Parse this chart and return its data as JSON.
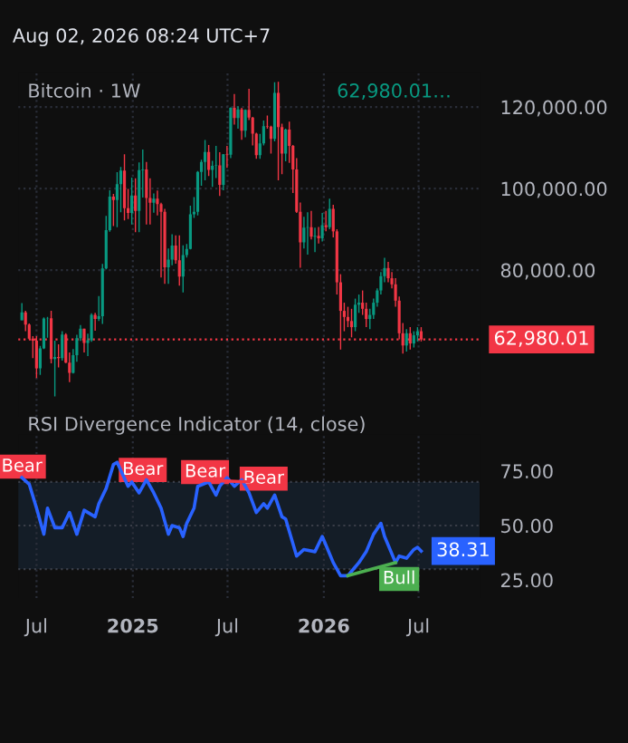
{
  "chart_data": [
    {
      "type": "candlestick",
      "title": "Bitcoin · 1W",
      "subtitle": "Aug 02, 2026 08:24 UTC+7",
      "annotations": [
        "62,980.01…"
      ],
      "x": [
        "2024-06-03",
        "2024-06-10",
        "2024-06-17",
        "2024-06-24",
        "2024-07-01",
        "2024-07-08",
        "2024-07-15",
        "2024-07-22",
        "2024-07-29",
        "2024-08-05",
        "2024-08-12",
        "2024-08-19",
        "2024-08-26",
        "2024-09-02",
        "2024-09-09",
        "2024-09-16",
        "2024-09-23",
        "2024-09-30",
        "2024-10-07",
        "2024-10-14",
        "2024-10-21",
        "2024-10-28",
        "2024-11-04",
        "2024-11-11",
        "2024-11-18",
        "2024-11-25",
        "2024-12-02",
        "2024-12-09",
        "2024-12-16",
        "2024-12-23",
        "2024-12-30",
        "2025-01-06",
        "2025-01-13",
        "2025-01-20",
        "2025-01-27",
        "2025-02-03",
        "2025-02-10",
        "2025-02-17",
        "2025-02-24",
        "2025-03-03",
        "2025-03-10",
        "2025-03-17",
        "2025-03-24",
        "2025-03-31",
        "2025-04-07",
        "2025-04-14",
        "2025-04-21",
        "2025-04-28",
        "2025-05-05",
        "2025-05-12",
        "2025-05-19",
        "2025-05-26",
        "2025-06-02",
        "2025-06-09",
        "2025-06-16",
        "2025-06-23",
        "2025-06-30",
        "2025-07-07",
        "2025-07-14",
        "2025-07-21",
        "2025-07-28",
        "2025-08-04",
        "2025-08-11",
        "2025-08-18",
        "2025-08-25",
        "2025-09-01",
        "2025-09-08",
        "2025-09-15",
        "2025-09-22",
        "2025-09-29",
        "2025-10-06",
        "2025-10-13",
        "2025-10-20",
        "2025-10-27",
        "2025-11-03",
        "2025-11-10",
        "2025-11-17",
        "2025-11-24",
        "2025-12-01",
        "2025-12-08",
        "2025-12-15",
        "2025-12-22",
        "2025-12-29",
        "2026-01-05",
        "2026-01-12",
        "2026-01-19",
        "2026-01-26",
        "2026-02-02",
        "2026-02-09",
        "2026-02-16",
        "2026-02-23",
        "2026-03-02",
        "2026-03-09",
        "2026-03-16",
        "2026-03-23",
        "2026-03-30",
        "2026-04-06",
        "2026-04-13",
        "2026-04-20",
        "2026-04-27",
        "2026-05-04",
        "2026-05-11",
        "2026-05-18",
        "2026-05-25",
        "2026-06-01",
        "2026-06-08",
        "2026-06-15",
        "2026-06-22",
        "2026-06-29",
        "2026-07-06"
      ],
      "ohlc": [
        [
          67700,
          71900,
          67700,
          69600
        ],
        [
          69600,
          70000,
          65000,
          66600
        ],
        [
          66600,
          66900,
          63000,
          63200
        ],
        [
          63200,
          63800,
          58400,
          62700
        ],
        [
          62700,
          63800,
          53500,
          55900
        ],
        [
          55900,
          61400,
          54300,
          60800
        ],
        [
          60800,
          68400,
          60600,
          68100
        ],
        [
          68100,
          68500,
          63400,
          68200
        ],
        [
          68200,
          70000,
          57100,
          58200
        ],
        [
          58200,
          62700,
          49000,
          58700
        ],
        [
          58700,
          61800,
          56100,
          58400
        ],
        [
          58400,
          65000,
          57800,
          64200
        ],
        [
          64200,
          64500,
          57200,
          57300
        ],
        [
          57300,
          59800,
          52500,
          54800
        ],
        [
          54800,
          60600,
          54600,
          59100
        ],
        [
          59100,
          64100,
          57500,
          63300
        ],
        [
          63300,
          66500,
          62600,
          65600
        ],
        [
          65600,
          65600,
          59800,
          62100
        ],
        [
          62100,
          64400,
          58900,
          62800
        ],
        [
          62800,
          69400,
          62400,
          69000
        ],
        [
          69000,
          69500,
          65100,
          68000
        ],
        [
          68000,
          73600,
          67500,
          68700
        ],
        [
          68700,
          81500,
          66800,
          80400
        ],
        [
          80400,
          93300,
          80200,
          89800
        ],
        [
          89800,
          99600,
          89400,
          98000
        ],
        [
          98000,
          98700,
          90800,
          97200
        ],
        [
          97200,
          104000,
          90500,
          101100
        ],
        [
          101100,
          105300,
          94200,
          104400
        ],
        [
          104400,
          108400,
          92200,
          95200
        ],
        [
          95200,
          99900,
          92500,
          94000
        ],
        [
          94000,
          102700,
          91200,
          98300
        ],
        [
          98300,
          102500,
          89300,
          94500
        ],
        [
          94500,
          106400,
          89300,
          104500
        ],
        [
          104500,
          109600,
          97800,
          104700
        ],
        [
          104700,
          106500,
          91200,
          97700
        ],
        [
          97700,
          102500,
          91200,
          96500
        ],
        [
          96500,
          98800,
          94100,
          97500
        ],
        [
          97500,
          99500,
          93400,
          96200
        ],
        [
          96200,
          96500,
          78200,
          94300
        ],
        [
          94300,
          95000,
          76600,
          80700
        ],
        [
          80700,
          85300,
          76600,
          82600
        ],
        [
          82600,
          88800,
          81200,
          86000
        ],
        [
          86000,
          88500,
          81600,
          82400
        ],
        [
          82400,
          88500,
          76200,
          78400
        ],
        [
          78400,
          86100,
          74500,
          83700
        ],
        [
          83700,
          86400,
          83100,
          85200
        ],
        [
          85200,
          95800,
          85100,
          93700
        ],
        [
          93700,
          97900,
          92800,
          94300
        ],
        [
          94300,
          104300,
          93400,
          104100
        ],
        [
          104100,
          107100,
          100700,
          106500
        ],
        [
          106500,
          111900,
          102000,
          109000
        ],
        [
          109000,
          110700,
          103100,
          104600
        ],
        [
          104600,
          106800,
          100400,
          105600
        ],
        [
          105600,
          110500,
          102600,
          105700
        ],
        [
          105700,
          108900,
          98200,
          100900
        ],
        [
          100900,
          108500,
          99600,
          108400
        ],
        [
          108400,
          110500,
          105100,
          108300
        ],
        [
          108300,
          119900,
          107500,
          119800
        ],
        [
          119800,
          123200,
          115700,
          117300
        ],
        [
          117300,
          120200,
          114700,
          119400
        ],
        [
          119400,
          119800,
          112000,
          114200
        ],
        [
          114200,
          119400,
          112600,
          119300
        ],
        [
          119300,
          124500,
          116800,
          117400
        ],
        [
          117400,
          117600,
          110600,
          113500
        ],
        [
          113500,
          113700,
          107300,
          108200
        ],
        [
          108200,
          113400,
          107300,
          111100
        ],
        [
          111100,
          116700,
          110600,
          115300
        ],
        [
          115300,
          117900,
          114700,
          115200
        ],
        [
          115200,
          115400,
          108600,
          112200
        ],
        [
          112200,
          126100,
          111600,
          123500
        ],
        [
          123500,
          126200,
          102000,
          115100
        ],
        [
          115100,
          115900,
          103500,
          108600
        ],
        [
          108600,
          114700,
          106700,
          114500
        ],
        [
          114500,
          116400,
          106300,
          110500
        ],
        [
          110500,
          110700,
          98900,
          104700
        ],
        [
          104700,
          107500,
          94000,
          94300
        ],
        [
          94300,
          96600,
          80600,
          86800
        ],
        [
          86800,
          93100,
          85300,
          90400
        ],
        [
          90400,
          94200,
          83800,
          90500
        ],
        [
          90500,
          94500,
          87500,
          88200
        ],
        [
          88200,
          90400,
          84400,
          88400
        ],
        [
          88400,
          90600,
          86500,
          87800
        ],
        [
          87800,
          94000,
          87000,
          91000
        ],
        [
          91000,
          94500,
          89500,
          90500
        ],
        [
          90500,
          97500,
          90000,
          95000
        ],
        [
          95000,
          96000,
          88000,
          89500
        ],
        [
          89500,
          90000,
          74000,
          77000
        ],
        [
          77000,
          79000,
          60500,
          70000
        ],
        [
          70000,
          72000,
          65000,
          68500
        ],
        [
          68500,
          71000,
          66000,
          67500
        ],
        [
          67500,
          70500,
          63500,
          66000
        ],
        [
          66000,
          73000,
          65000,
          71500
        ],
        [
          71500,
          74000,
          69500,
          72000
        ],
        [
          72000,
          75000,
          69000,
          70500
        ],
        [
          70500,
          72000,
          66000,
          68000
        ],
        [
          68000,
          70500,
          65500,
          69000
        ],
        [
          69000,
          73000,
          68000,
          72000
        ],
        [
          72000,
          75500,
          71000,
          75000
        ],
        [
          75000,
          79500,
          74000,
          78500
        ],
        [
          78500,
          83000,
          77000,
          80500
        ],
        [
          80500,
          82000,
          77000,
          78000
        ],
        [
          78000,
          79500,
          75500,
          76500
        ],
        [
          76500,
          78000,
          71000,
          72500
        ],
        [
          72500,
          73500,
          63000,
          64500
        ],
        [
          64500,
          67000,
          59500,
          61500
        ],
        [
          61500,
          65500,
          60000,
          64500
        ],
        [
          64500,
          66000,
          60500,
          62000
        ],
        [
          62000,
          65000,
          61000,
          64000
        ],
        [
          64000,
          66000,
          62500,
          65000
        ],
        [
          65000,
          66000,
          62500,
          62980.01
        ]
      ],
      "colors": [
        "#089981",
        "#f23645",
        "#f23645",
        "#f23645",
        "#f23645",
        "#089981",
        "#089981",
        "#089981",
        "#f23645",
        "#089981",
        "#f23645",
        "#089981",
        "#f23645",
        "#f23645",
        "#089981",
        "#089981",
        "#089981",
        "#f23645",
        "#089981",
        "#089981",
        "#f23645",
        "#089981",
        "#089981",
        "#089981",
        "#089981",
        "#f23645",
        "#089981",
        "#089981",
        "#f23645",
        "#f23645",
        "#089981",
        "#f23645",
        "#089981",
        "#089981",
        "#f23645",
        "#f23645",
        "#089981",
        "#f23645",
        "#f23645",
        "#f23645",
        "#089981",
        "#089981",
        "#f23645",
        "#f23645",
        "#089981",
        "#089981",
        "#089981",
        "#089981",
        "#089981",
        "#089981",
        "#089981",
        "#f23645",
        "#089981",
        "#089981",
        "#f23645",
        "#089981",
        "#f23645",
        "#089981",
        "#f23645",
        "#089981",
        "#f23645",
        "#089981",
        "#f23645",
        "#f23645",
        "#f23645",
        "#089981",
        "#089981",
        "#f23645",
        "#f23645",
        "#089981",
        "#f23645",
        "#f23645",
        "#089981",
        "#f23645",
        "#f23645",
        "#f23645",
        "#f23645",
        "#089981",
        "#089981",
        "#f23645",
        "#089981",
        "#f23645",
        "#089981",
        "#f23645",
        "#089981",
        "#f23645",
        "#f23645",
        "#f23645",
        "#f23645",
        "#f23645",
        "#f23645",
        "#089981",
        "#089981",
        "#f23645",
        "#f23645",
        "#089981",
        "#089981",
        "#089981",
        "#089981",
        "#089981",
        "#f23645",
        "#f23645",
        "#f23645",
        "#f23645",
        "#f23645",
        "#089981",
        "#f23645",
        "#089981",
        "#089981",
        "#f23645"
      ],
      "xlim": [
        "2024-05-27",
        "2026-10-26"
      ],
      "xticks": [
        {
          "value": "2024-07-01",
          "label": null
        },
        {
          "value": "2025-01-01",
          "label": null
        },
        {
          "value": "2025-07-01",
          "label": null
        },
        {
          "value": "2026-01-01",
          "label": null
        },
        {
          "value": "2026-07-01",
          "label": null
        }
      ],
      "ylim": [
        44000,
        128400
      ],
      "yticks": [
        {
          "value": 80000,
          "label": "80,000.00"
        },
        {
          "value": 100000,
          "label": "100,000.00"
        },
        {
          "value": 120000,
          "label": "120,000.00"
        }
      ],
      "ref_lines": [
        {
          "axis": "y",
          "value": 62980.01,
          "label": "62,980.01",
          "color": "#f23645",
          "line_style": "dotted"
        }
      ],
      "grid": true,
      "tick_labels": "y"
    },
    {
      "type": "line",
      "title": "RSI Divergence Indicator (14, close)",
      "series": [
        {
          "color": "#2962ff",
          "x": [
            "2024-06-03",
            "2024-06-17",
            "2024-07-01",
            "2024-07-15",
            "2024-07-22",
            "2024-08-05",
            "2024-08-19",
            "2024-09-02",
            "2024-09-16",
            "2024-09-30",
            "2024-10-21",
            "2024-10-28",
            "2024-11-11",
            "2024-11-25",
            "2024-12-02",
            "2024-12-23",
            "2024-12-30",
            "2025-01-13",
            "2025-01-27",
            "2025-02-10",
            "2025-02-24",
            "2025-03-10",
            "2025-03-17",
            "2025-03-31",
            "2025-04-07",
            "2025-04-14",
            "2025-04-28",
            "2025-05-05",
            "2025-05-26",
            "2025-06-09",
            "2025-06-16",
            "2025-06-30",
            "2025-07-14",
            "2025-07-28",
            "2025-08-11",
            "2025-08-25",
            "2025-09-08",
            "2025-09-15",
            "2025-09-29",
            "2025-10-13",
            "2025-10-20",
            "2025-11-10",
            "2025-11-24",
            "2025-12-15",
            "2025-12-29",
            "2026-01-19",
            "2026-02-02",
            "2026-02-16",
            "2026-02-23",
            "2026-03-09",
            "2026-03-23",
            "2026-04-06",
            "2026-04-20",
            "2026-04-27",
            "2026-05-18",
            "2026-05-25",
            "2026-06-08",
            "2026-06-22",
            "2026-06-29",
            "2026-07-06"
          ],
          "values": [
            72,
            69,
            58,
            46,
            58,
            49,
            49,
            56,
            46,
            57,
            54,
            60,
            67,
            78,
            79,
            68,
            70,
            65,
            71,
            65,
            58,
            46,
            50,
            49,
            45,
            51,
            58,
            68,
            70,
            64,
            68,
            72,
            68,
            71,
            65,
            56,
            60,
            58,
            64,
            54,
            53,
            36,
            39,
            38,
            45,
            33,
            27,
            27,
            29,
            33,
            38,
            46,
            51,
            45,
            33,
            36,
            35,
            39,
            40,
            38.31
          ],
          "value_labels": [
            null,
            null,
            null,
            null,
            null,
            null,
            null,
            null,
            null,
            null,
            null,
            null,
            null,
            null,
            null,
            null,
            null,
            null,
            null,
            null,
            null,
            null,
            null,
            null,
            null,
            null,
            null,
            null,
            null,
            null,
            null,
            null,
            null,
            null,
            null,
            null,
            null,
            null,
            null,
            null,
            null,
            null,
            null,
            null,
            null,
            null,
            null,
            null,
            null,
            null,
            null,
            null,
            null,
            null,
            null,
            null,
            null,
            null,
            null,
            "38.31"
          ]
        },
        {
          "color": "#f23645",
          "x": [
            "2025-05-05",
            "2025-08-11"
          ],
          "values": [
            71,
            70
          ]
        },
        {
          "color": "#4caf50",
          "x": [
            "2026-02-16",
            "2026-05-18"
          ],
          "values": [
            27,
            33
          ]
        }
      ],
      "annotations": [
        {
          "text": "Bear",
          "x": "2024-06-03",
          "y": 77
        },
        {
          "text": "Bear",
          "x": "2025-01-20",
          "y": 75.5
        },
        {
          "text": "Bear",
          "x": "2025-05-19",
          "y": 74.5
        },
        {
          "text": "Bear",
          "x": "2025-09-08",
          "y": 71.5
        },
        {
          "text": "Bull",
          "x": "2026-05-25",
          "y": 25.5
        }
      ],
      "xlim": [
        "2024-05-27",
        "2026-10-26"
      ],
      "xticks": [
        {
          "value": "2024-07-01",
          "label": "Jul"
        },
        {
          "value": "2025-01-01",
          "label": "2025"
        },
        {
          "value": "2025-07-01",
          "label": "Jul"
        },
        {
          "value": "2026-01-01",
          "label": "2026"
        },
        {
          "value": "2026-07-01",
          "label": "Jul"
        }
      ],
      "ylim": [
        16.7,
        91.7
      ],
      "yticks": [
        {
          "value": 25,
          "label": "25.00"
        },
        {
          "value": 50,
          "label": "50.00"
        },
        {
          "value": 75,
          "label": "75.00"
        }
      ],
      "bands": [
        {
          "axis": "y",
          "from": 30,
          "to": 70,
          "color": "#141d27"
        }
      ],
      "ref_lines": [
        {
          "axis": "y",
          "value": 70,
          "color": "#3a3e48",
          "line_style": "dotted"
        },
        {
          "axis": "y",
          "value": 50,
          "color": "#3a3e48",
          "line_style": "dotted"
        },
        {
          "axis": "y",
          "value": 30,
          "color": "#3a3e48",
          "line_style": "dotted"
        }
      ],
      "grid": "x"
    }
  ]
}
